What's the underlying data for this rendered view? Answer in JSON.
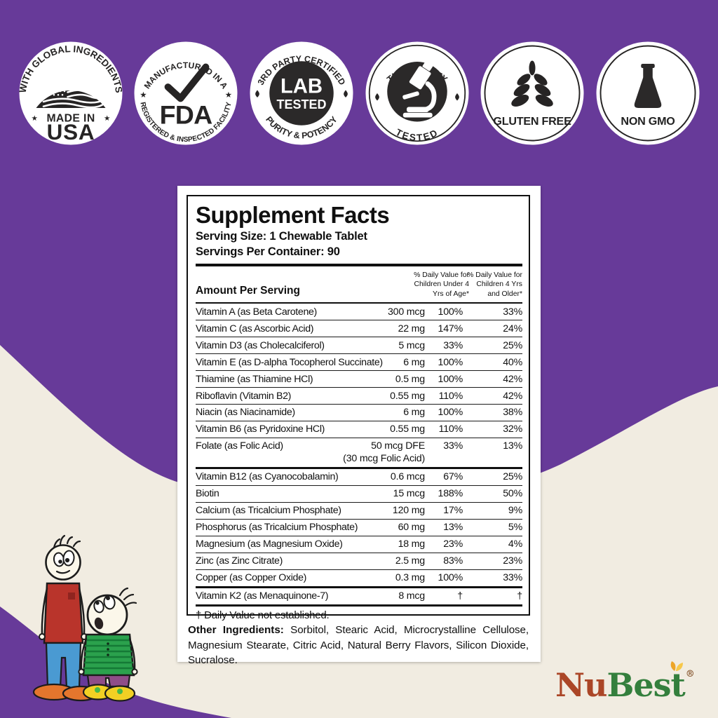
{
  "colors": {
    "purple": "#673a99",
    "cream": "#f1ece1",
    "badge_dark": "#262424",
    "logo_red": "#ab4627",
    "logo_green": "#347f3d",
    "kid_shirt_red": "#b9342b",
    "kid_pants_blue": "#4a9ad2",
    "kid_shoes_orange": "#e4762d",
    "kid_shirt_green": "#2ba14d",
    "kid_pants_purple": "#8f4d88",
    "kid_shoes_yellow": "#f2d024"
  },
  "badges": [
    {
      "id": "made-in-usa",
      "arc_top": "WITH GLOBAL INGREDIENTS",
      "star": "★",
      "line1": "MADE IN",
      "line2": "USA"
    },
    {
      "id": "fda",
      "arc_top": "MANUFACTURED IN A",
      "arc_bottom": "REGISTERED & INSPECTED FACILITY",
      "star_left": "★",
      "star_right": "★",
      "center": "FDA"
    },
    {
      "id": "lab-tested",
      "arc_top": "3RD PARTY CERTIFIED",
      "arc_bottom": "PURITY & POTENCY",
      "center_line1": "LAB",
      "center_line2": "TESTED"
    },
    {
      "id": "third-party-tested",
      "arc_top": "THIRD PARTY",
      "arc_bottom": "TESTED"
    },
    {
      "id": "gluten-free",
      "label": "GLUTEN FREE"
    },
    {
      "id": "non-gmo",
      "label": "NON GMO"
    }
  ],
  "panel": {
    "title": "Supplement Facts",
    "serving_size": "Serving Size: 1 Chewable Tablet",
    "servings_per_container": "Servings Per Container: 90",
    "col_amount": "Amount Per Serving",
    "col_dv_under4_lines": [
      "% Daily Value for",
      "Children Under 4",
      "Yrs of Age*"
    ],
    "col_dv_older_lines": [
      "% Daily Value for",
      "Children 4 Yrs",
      "and Older*"
    ],
    "rows": [
      {
        "name": "Vitamin A (as Beta Carotene)",
        "amount": "300 mcg",
        "dv1": "100%",
        "dv2": "33%"
      },
      {
        "name": "Vitamin C (as Ascorbic Acid)",
        "amount": "22 mg",
        "dv1": "147%",
        "dv2": "24%"
      },
      {
        "name": "Vitamin D3 (as Cholecalciferol)",
        "amount": "5 mcg",
        "dv1": "33%",
        "dv2": "25%"
      },
      {
        "name": "Vitamin E (as D-alpha Tocopherol Succinate)",
        "amount": "6 mg",
        "dv1": "100%",
        "dv2": "40%"
      },
      {
        "name": "Thiamine (as Thiamine HCl)",
        "amount": "0.5 mg",
        "dv1": "100%",
        "dv2": "42%"
      },
      {
        "name": "Riboflavin (Vitamin B2)",
        "amount": "0.55 mg",
        "dv1": "110%",
        "dv2": "42%"
      },
      {
        "name": "Niacin (as Niacinamide)",
        "amount": "6 mg",
        "dv1": "100%",
        "dv2": "38%"
      },
      {
        "name": "Vitamin B6 (as Pyridoxine HCl)",
        "amount": "0.55 mg",
        "dv1": "110%",
        "dv2": "32%"
      },
      {
        "name": "Folate (as Folic Acid)",
        "amount": "50 mcg DFE",
        "dv1": "33%",
        "dv2": "13%",
        "note": "(30 mcg Folic Acid)",
        "thick": true
      },
      {
        "name": "Vitamin B12 (as Cyanocobalamin)",
        "amount": "0.6 mcg",
        "dv1": "67%",
        "dv2": "25%"
      },
      {
        "name": "Biotin",
        "amount": "15 mcg",
        "dv1": "188%",
        "dv2": "50%"
      },
      {
        "name": "Calcium (as Tricalcium Phosphate)",
        "amount": "120 mg",
        "dv1": "17%",
        "dv2": "9%"
      },
      {
        "name": "Phosphorus (as Tricalcium Phosphate)",
        "amount": "60 mg",
        "dv1": "13%",
        "dv2": "5%"
      },
      {
        "name": "Magnesium (as Magnesium Oxide)",
        "amount": "18 mg",
        "dv1": "23%",
        "dv2": "4%"
      },
      {
        "name": "Zinc (as Zinc Citrate)",
        "amount": "2.5 mg",
        "dv1": "83%",
        "dv2": "23%"
      },
      {
        "name": "Copper (as Copper Oxide)",
        "amount": "0.3 mg",
        "dv1": "100%",
        "dv2": "33%",
        "thick": true
      },
      {
        "name": "Vitamin K2 (as Menaquinone-7)",
        "amount": "8 mcg",
        "dv1": "†",
        "dv2": "†",
        "thick": true
      }
    ],
    "footnote": "† Daily Value not established.",
    "other_ingredients_label": "Other Ingredients:",
    "other_ingredients_text": " Sorbitol, Stearic Acid, Microcrystalline Cellulose, Magnesium Stearate, Citric Acid, Natural Berry Flavors, Silicon Dioxide, Sucralose."
  },
  "logo": {
    "part1": "Nu",
    "part2": "Best",
    "reg": "®"
  }
}
